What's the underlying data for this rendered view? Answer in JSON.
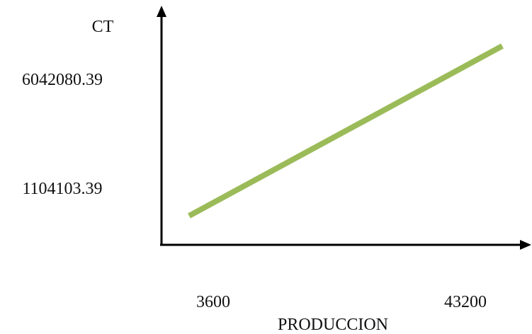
{
  "chart_data": {
    "type": "line",
    "ylabel": "CT",
    "xlabel": "PRODUCCION",
    "x": [
      3600,
      43200
    ],
    "series": [
      {
        "values": [
          1104103.39,
          6042080.39
        ]
      }
    ],
    "x_ticks": [
      "3600",
      "43200"
    ],
    "y_ticks": [
      "1104103.39",
      "6042080.39"
    ],
    "grid": false,
    "line_color": "#9bbb59",
    "axis_color": "#000000"
  }
}
